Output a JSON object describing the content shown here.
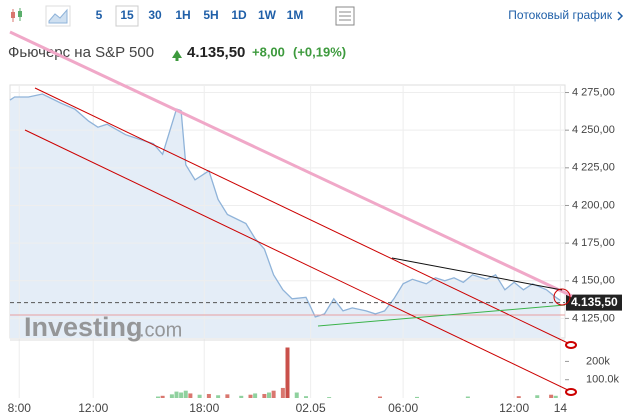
{
  "toolbar": {
    "intervals": [
      "5",
      "15",
      "30",
      "1H",
      "5H",
      "1D",
      "1W",
      "1M"
    ],
    "active": "15",
    "stream_link": "Потоковый график"
  },
  "header": {
    "title": "Фьючерс на S&P 500",
    "price": "4.135,50",
    "change": "+8,00",
    "change_pct": "(+0,19%)"
  },
  "watermark": {
    "brand": "Investing",
    "domain": ".com"
  },
  "chart_data": [
    {
      "type": "line",
      "color": "#8fb3d9",
      "fill": "#e4edf7",
      "grid": true,
      "x": [
        -2,
        -1,
        2,
        5,
        9,
        12,
        15,
        17,
        19,
        23,
        26,
        29,
        31,
        34,
        35,
        36,
        38,
        41,
        43,
        45,
        49,
        51,
        53,
        55,
        57,
        59,
        62,
        64,
        66,
        68,
        70,
        72,
        75,
        77,
        79,
        81,
        83,
        85,
        88,
        90,
        92,
        94,
        96,
        98,
        101,
        103,
        105,
        107,
        109,
        111,
        114,
        116,
        117
      ],
      "values": [
        4270,
        4272,
        4272,
        4274,
        4268,
        4264,
        4256,
        4252,
        4254,
        4247,
        4244,
        4241,
        4234,
        4264,
        4263,
        4227,
        4217,
        4223,
        4204,
        4194,
        4188,
        4178,
        4171,
        4154,
        4144,
        4138,
        4139,
        4126,
        4128,
        4138,
        4130,
        4132,
        4130,
        4128,
        4130,
        4138,
        4148,
        4151,
        4148,
        4152,
        4150,
        4152,
        4149,
        4154,
        4151,
        4154,
        4144,
        4149,
        4144,
        4148,
        4144,
        4139,
        4137
      ],
      "last_value": 4135.5,
      "last_label": "4.135,50",
      "xlim": [
        -2,
        118
      ],
      "xticks": [
        {
          "value": 0,
          "label": "8:00"
        },
        {
          "value": 16,
          "label": "12:00"
        },
        {
          "value": 40,
          "label": "18:00"
        },
        {
          "value": 63,
          "label": "02.05"
        },
        {
          "value": 83,
          "label": "06:00"
        },
        {
          "value": 107,
          "label": "12:00"
        },
        {
          "value": 117,
          "label": "14"
        }
      ],
      "ylim": [
        4112,
        4280
      ],
      "yticks": [
        {
          "value": 4125,
          "label": "4 125,00"
        },
        {
          "value": 4150,
          "label": "4 150,00"
        },
        {
          "value": 4175,
          "label": "4 175,00"
        },
        {
          "value": 4200,
          "label": "4 200,00"
        },
        {
          "value": 4225,
          "label": "4 225,00"
        },
        {
          "value": 4250,
          "label": "4 250,00"
        },
        {
          "value": 4275,
          "label": "4 275,00"
        }
      ]
    },
    {
      "type": "bar",
      "x": [
        30,
        31,
        33,
        34,
        35,
        36,
        37,
        39,
        41,
        43,
        45,
        48,
        50,
        51,
        53,
        54,
        55,
        57,
        58,
        60,
        62,
        67,
        78,
        86,
        97,
        108,
        112,
        115,
        116
      ],
      "values": [
        8000,
        12000,
        20000,
        35000,
        30000,
        40000,
        25000,
        18000,
        22000,
        15000,
        20000,
        12000,
        18000,
        25000,
        22000,
        30000,
        40000,
        55000,
        276000,
        30000,
        10000,
        5000,
        8000,
        6000,
        8000,
        10000,
        15000,
        18000,
        12000
      ],
      "colors": [
        "#8fd19e",
        "#d9776f",
        "#8fd19e",
        "#8fd19e",
        "#8fd19e",
        "#8fd19e",
        "#d9776f",
        "#8fd19e",
        "#d9776f",
        "#8fd19e",
        "#d9776f",
        "#8fd19e",
        "#d9776f",
        "#8fd19e",
        "#d9776f",
        "#8fd19e",
        "#d9776f",
        "#d9776f",
        "#c9504a",
        "#8fd19e",
        "#8fd19e",
        "#8fd19e",
        "#d9776f",
        "#8fd19e",
        "#8fd19e",
        "#d9776f",
        "#8fd19e",
        "#d9776f",
        "#8fd19e"
      ],
      "xlim": [
        -2,
        118
      ],
      "ylim": [
        0,
        317000
      ],
      "yticks": [
        {
          "value": 100000,
          "label": "100.0k"
        },
        {
          "value": 200000,
          "label": "200k"
        }
      ]
    }
  ]
}
